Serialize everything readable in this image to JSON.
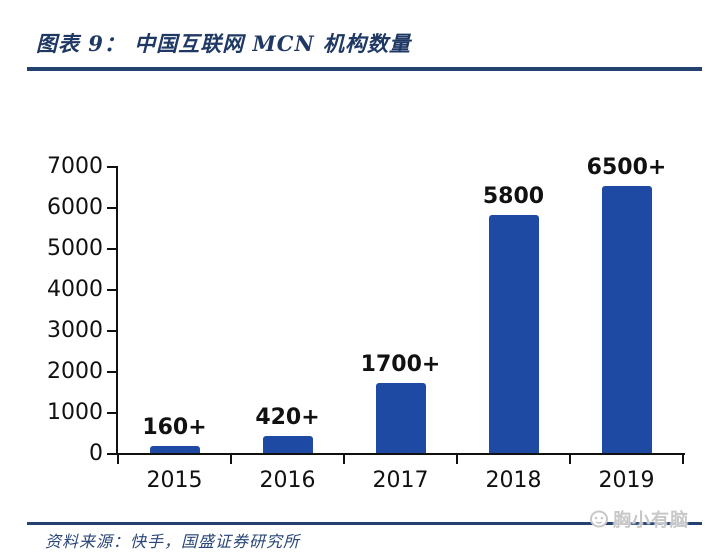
{
  "header": {
    "title": "图表 9： 中国互联网 MCN 机构数量"
  },
  "footer": {
    "source": "资料来源：快手，国盛证券研究所",
    "watermark": "胸小有脑"
  },
  "colors": {
    "bar": "#1F4AA3",
    "rule_navy": "#24426E",
    "title_navy": "#1F3864",
    "axis_black": "#111111",
    "watermark_gray": "#C8C8C8"
  },
  "chart_data": {
    "type": "bar",
    "title": "中国互联网MCN机构数量",
    "categories": [
      "2015",
      "2016",
      "2017",
      "2018",
      "2019"
    ],
    "values": [
      160,
      420,
      1700,
      5800,
      6500
    ],
    "value_labels": [
      "160+",
      "420+",
      "1700+",
      "5800",
      "6500+"
    ],
    "xlabel": "",
    "ylabel": "",
    "ylim": [
      0,
      7000
    ],
    "ytick_step": 1000,
    "ytick_labels": [
      "0",
      "1000",
      "2000",
      "3000",
      "4000",
      "5000",
      "6000",
      "7000"
    ],
    "grid": false,
    "legend": "none",
    "bar_color": "#1F4AA3"
  }
}
